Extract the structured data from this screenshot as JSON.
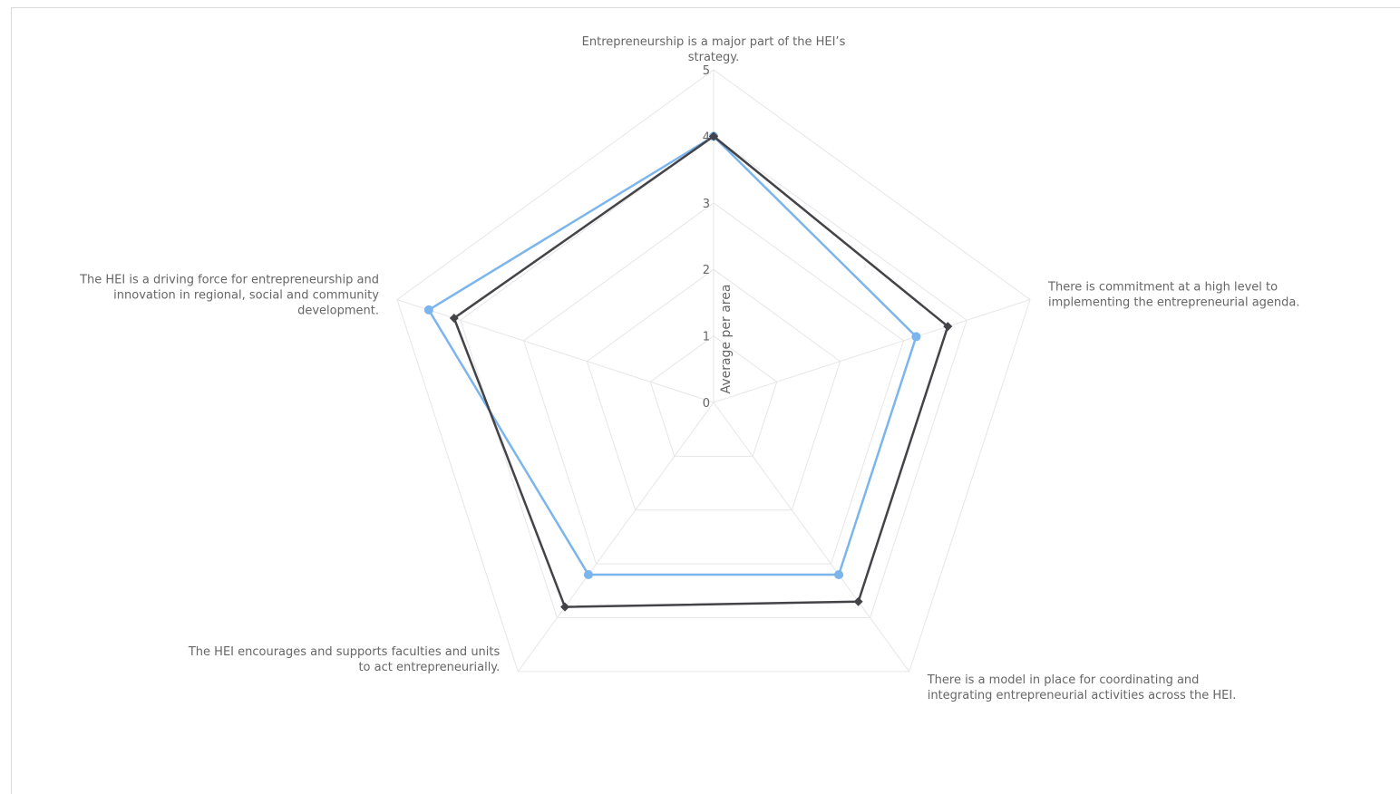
{
  "chart_data": {
    "type": "radar",
    "ylabel": "Average per area",
    "ylim": [
      0,
      5
    ],
    "ticks": [
      "0",
      "1",
      "2",
      "3",
      "4",
      "5"
    ],
    "categories": [
      {
        "label": "Entrepreneurship is a major part of the HEI’s strategy.",
        "lines": [
          "Entrepreneurship is a major part of the HEI’s",
          "strategy."
        ]
      },
      {
        "label": "There is commitment at a high level to implementing the entrepreneurial agenda.",
        "lines": [
          "There is commitment at a high level to",
          "implementing the entrepreneurial agenda."
        ]
      },
      {
        "label": "There is a model in place for coordinating and integrating entrepreneurial activities across the HEI.",
        "lines": [
          "There is a model in place for coordinating and",
          "integrating entrepreneurial activities across the HEI."
        ]
      },
      {
        "label": "The HEI encourages and supports faculties and units to act entrepreneurially.",
        "lines": [
          "The HEI encourages and supports faculties and units",
          "to act entrepreneurially."
        ]
      },
      {
        "label": "The HEI is a driving force for entrepreneurship and innovation in regional, social and community development.",
        "lines": [
          "The HEI is a driving force for entrepreneurship and",
          "innovation in regional, social and community",
          "development."
        ]
      }
    ],
    "series": [
      {
        "values": [
          4.0,
          3.2,
          3.2,
          3.2,
          4.5
        ],
        "color": "#7cb5ec",
        "marker": "circle"
      },
      {
        "values": [
          4.0,
          3.7,
          3.7,
          3.8,
          4.1
        ],
        "color": "#434348",
        "marker": "diamond"
      }
    ],
    "grid": true,
    "grid_shape": "polygon",
    "legend": "none"
  }
}
